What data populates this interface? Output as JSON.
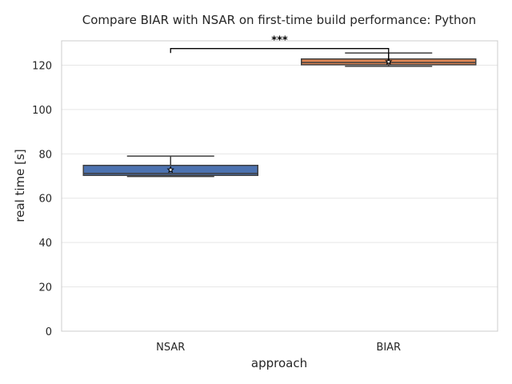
{
  "chart_data": {
    "type": "box",
    "title": "Compare BIAR with NSAR on first-time build performance: Python",
    "xlabel": "approach",
    "ylabel": "real time [s]",
    "ylim": [
      0,
      131
    ],
    "yticks": [
      0,
      20,
      40,
      60,
      80,
      100,
      120
    ],
    "grid": true,
    "categories": [
      "NSAR",
      "BIAR"
    ],
    "boxes": [
      {
        "category": "NSAR",
        "color": "#4c72b0",
        "whisker_low": 69.8,
        "q1": 70.3,
        "median": 71.2,
        "q3": 74.8,
        "whisker_high": 79.0,
        "mean": 72.8
      },
      {
        "category": "BIAR",
        "color": "#dd8452",
        "whisker_low": 119.5,
        "q1": 120.2,
        "median": 121.2,
        "q3": 122.8,
        "whisker_high": 125.5,
        "mean": 121.6
      }
    ],
    "significance": {
      "label": "***",
      "y_level": 127.5,
      "left_drop": 125.5,
      "right_drop": 122.0
    }
  }
}
